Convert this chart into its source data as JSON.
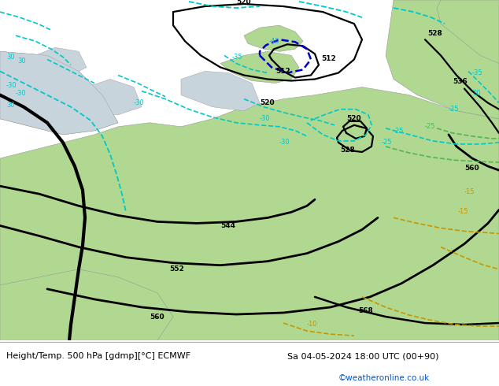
{
  "title_left": "Height/Temp. 500 hPa [gdmp][°C] ECMWF",
  "title_right": "Sa 04-05-2024 18:00 UTC (00+90)",
  "title_right2": "©weatheronline.co.uk",
  "bg_land": "#b0d890",
  "bg_sea": "#c8d4dc",
  "bg_white": "#ffffff",
  "c_black": "#000000",
  "c_blue": "#00aaff",
  "c_cyan": "#00c8c8",
  "c_orange": "#c89600",
  "c_green": "#50b850",
  "c_darkblue": "#0000cc"
}
